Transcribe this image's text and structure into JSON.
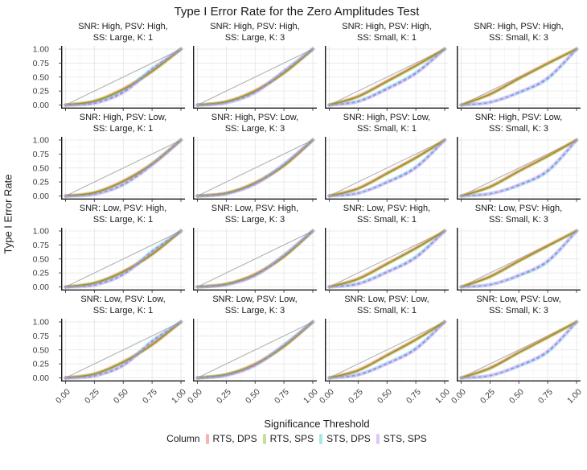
{
  "title": "Type I Error Rate for the Zero Amplitudes Test",
  "y_axis": {
    "label": "Type I Error Rate",
    "ticks": [
      "0.00",
      "0.25",
      "0.50",
      "0.75",
      "1.00"
    ],
    "tick_values": [
      0,
      0.25,
      0.5,
      0.75,
      1
    ]
  },
  "x_axis": {
    "label": "Significance Threshold",
    "ticks": [
      "0.00",
      "0.25",
      "0.50",
      "0.75",
      "1.00"
    ],
    "tick_values": [
      0,
      0.25,
      0.5,
      0.75,
      1
    ]
  },
  "legend": {
    "title": "Column",
    "position": "bottom",
    "entries": [
      {
        "label": "RTS, DPS",
        "key_color": "#f7b3ad"
      },
      {
        "label": "RTS, SPS",
        "key_color": "#c6df97"
      },
      {
        "label": "STS, DPS",
        "key_color": "#a6e8e5"
      },
      {
        "label": "STS, SPS",
        "key_color": "#ddc7f8"
      }
    ]
  },
  "palette": {
    "series": [
      {
        "name": "RTS, DPS",
        "base_color": "#F8766D",
        "line_color": "#ef8f86",
        "halo_color": "rgba(248,118,109,0.28)",
        "dash": "solid"
      },
      {
        "name": "RTS, SPS",
        "base_color": "#7CAE00",
        "line_color": "#9a9428",
        "halo_color": "rgba(124,174,0,0.30)",
        "dash": "solid"
      },
      {
        "name": "STS, DPS",
        "base_color": "#00BFC4",
        "line_color": "#67aedd",
        "halo_color": "rgba(0,191,196,0.22)",
        "dash": "dashed"
      },
      {
        "name": "STS, SPS",
        "base_color": "#C77CFF",
        "line_color": "#b48de2",
        "halo_color": "rgba(199,124,255,0.25)",
        "dash": "dashed"
      }
    ],
    "reference_line_color": "#b3b3b3",
    "major_grid_color": "#e4e4e4",
    "minor_grid_color": "#f2f2f2",
    "axis_line_color": "#1a1a1a"
  },
  "chart_data": {
    "type": "line",
    "title": "Type I Error Rate for the Zero Amplitudes Test",
    "xlabel": "Significance Threshold",
    "ylabel": "Type I Error Rate",
    "xlim": [
      0,
      1
    ],
    "ylim": [
      0,
      1
    ],
    "grid": "major+minor",
    "legend_position": "bottom",
    "reference_line": "y = x (identity diagonal, gray)",
    "facet_layout": "4x4 grid; rows vary SNR/PSV, columns vary SS/K",
    "x": [
      0,
      0.25,
      0.5,
      0.75,
      1
    ],
    "facets": [
      {
        "title_line1": "SNR: High, PSV: High,",
        "title_line2": "SS: Large, K: 1",
        "series": [
          {
            "name": "RTS, DPS",
            "y": [
              0,
              0.07,
              0.29,
              0.61,
              1
            ]
          },
          {
            "name": "RTS, SPS",
            "y": [
              0,
              0.07,
              0.28,
              0.6,
              1
            ]
          },
          {
            "name": "STS, DPS",
            "y": [
              0,
              0.04,
              0.24,
              0.65,
              1
            ]
          },
          {
            "name": "STS, SPS",
            "y": [
              0,
              0.03,
              0.22,
              0.63,
              1
            ]
          }
        ]
      },
      {
        "title_line1": "SNR: High, PSV: High,",
        "title_line2": "SS: Large, K: 3",
        "series": [
          {
            "name": "RTS, DPS",
            "y": [
              0,
              0.06,
              0.26,
              0.58,
              1
            ]
          },
          {
            "name": "RTS, SPS",
            "y": [
              0,
              0.06,
              0.25,
              0.57,
              1
            ]
          },
          {
            "name": "STS, DPS",
            "y": [
              0,
              0.04,
              0.23,
              0.61,
              1
            ]
          },
          {
            "name": "STS, SPS",
            "y": [
              0,
              0.04,
              0.22,
              0.6,
              1
            ]
          }
        ]
      },
      {
        "title_line1": "SNR: High, PSV: High,",
        "title_line2": "SS: Small, K: 1",
        "series": [
          {
            "name": "RTS, DPS",
            "y": [
              0,
              0.16,
              0.43,
              0.71,
              1
            ]
          },
          {
            "name": "RTS, SPS",
            "y": [
              0,
              0.15,
              0.42,
              0.7,
              1
            ]
          },
          {
            "name": "STS, DPS",
            "y": [
              0,
              0.07,
              0.3,
              0.58,
              1
            ]
          },
          {
            "name": "STS, SPS",
            "y": [
              0,
              0.06,
              0.28,
              0.56,
              1
            ]
          }
        ]
      },
      {
        "title_line1": "SNR: High, PSV: High,",
        "title_line2": "SS: Small, K: 3",
        "series": [
          {
            "name": "RTS, DPS",
            "y": [
              0,
              0.2,
              0.48,
              0.75,
              1
            ]
          },
          {
            "name": "RTS, SPS",
            "y": [
              0,
              0.19,
              0.47,
              0.74,
              1
            ]
          },
          {
            "name": "STS, DPS",
            "y": [
              0,
              0.05,
              0.22,
              0.47,
              1
            ]
          },
          {
            "name": "STS, SPS",
            "y": [
              0,
              0.05,
              0.23,
              0.49,
              1
            ]
          }
        ]
      },
      {
        "title_line1": "SNR: High, PSV: Low,",
        "title_line2": "SS: Large, K: 1",
        "series": [
          {
            "name": "RTS, DPS",
            "y": [
              0,
              0.06,
              0.27,
              0.58,
              1
            ]
          },
          {
            "name": "RTS, SPS",
            "y": [
              0,
              0.06,
              0.26,
              0.57,
              1
            ]
          },
          {
            "name": "STS, DPS",
            "y": [
              0,
              0.03,
              0.21,
              0.57,
              1
            ]
          },
          {
            "name": "STS, SPS",
            "y": [
              0,
              0.03,
              0.2,
              0.55,
              1
            ]
          }
        ]
      },
      {
        "title_line1": "SNR: High, PSV: Low,",
        "title_line2": "SS: Large, K: 3",
        "series": [
          {
            "name": "RTS, DPS",
            "y": [
              0,
              0.05,
              0.24,
              0.55,
              1
            ]
          },
          {
            "name": "RTS, SPS",
            "y": [
              0,
              0.05,
              0.23,
              0.54,
              1
            ]
          },
          {
            "name": "STS, DPS",
            "y": [
              0,
              0.04,
              0.22,
              0.57,
              1
            ]
          },
          {
            "name": "STS, SPS",
            "y": [
              0,
              0.04,
              0.21,
              0.56,
              1
            ]
          }
        ]
      },
      {
        "title_line1": "SNR: High, PSV: Low,",
        "title_line2": "SS: Small, K: 1",
        "series": [
          {
            "name": "RTS, DPS",
            "y": [
              0,
              0.14,
              0.41,
              0.69,
              1
            ]
          },
          {
            "name": "RTS, SPS",
            "y": [
              0,
              0.13,
              0.4,
              0.68,
              1
            ]
          },
          {
            "name": "STS, DPS",
            "y": [
              0,
              0.05,
              0.25,
              0.52,
              1
            ]
          },
          {
            "name": "STS, SPS",
            "y": [
              0,
              0.05,
              0.24,
              0.5,
              1
            ]
          }
        ]
      },
      {
        "title_line1": "SNR: High, PSV: Low,",
        "title_line2": "SS: Small, K: 3",
        "series": [
          {
            "name": "RTS, DPS",
            "y": [
              0,
              0.17,
              0.45,
              0.72,
              1
            ]
          },
          {
            "name": "RTS, SPS",
            "y": [
              0,
              0.16,
              0.44,
              0.71,
              1
            ]
          },
          {
            "name": "STS, DPS",
            "y": [
              0,
              0.04,
              0.19,
              0.44,
              1
            ]
          },
          {
            "name": "STS, SPS",
            "y": [
              0,
              0.04,
              0.2,
              0.46,
              1
            ]
          }
        ]
      },
      {
        "title_line1": "SNR: Low, PSV: High,",
        "title_line2": "SS: Large, K: 1",
        "series": [
          {
            "name": "RTS, DPS",
            "y": [
              0,
              0.07,
              0.28,
              0.59,
              1
            ]
          },
          {
            "name": "RTS, SPS",
            "y": [
              0,
              0.07,
              0.27,
              0.58,
              1
            ]
          },
          {
            "name": "STS, DPS",
            "y": [
              0,
              0.04,
              0.23,
              0.64,
              1
            ]
          },
          {
            "name": "STS, SPS",
            "y": [
              0,
              0.03,
              0.22,
              0.62,
              1
            ]
          }
        ]
      },
      {
        "title_line1": "SNR: Low, PSV: High,",
        "title_line2": "SS: Large, K: 3",
        "series": [
          {
            "name": "RTS, DPS",
            "y": [
              0,
              0.05,
              0.23,
              0.55,
              1
            ]
          },
          {
            "name": "RTS, SPS",
            "y": [
              0,
              0.05,
              0.22,
              0.54,
              1
            ]
          },
          {
            "name": "STS, DPS",
            "y": [
              0,
              0.04,
              0.21,
              0.57,
              1
            ]
          },
          {
            "name": "STS, SPS",
            "y": [
              0,
              0.04,
              0.2,
              0.56,
              1
            ]
          }
        ]
      },
      {
        "title_line1": "SNR: Low, PSV: High,",
        "title_line2": "SS: Small, K: 1",
        "series": [
          {
            "name": "RTS, DPS",
            "y": [
              0,
              0.15,
              0.42,
              0.7,
              1
            ]
          },
          {
            "name": "RTS, SPS",
            "y": [
              0,
              0.14,
              0.41,
              0.69,
              1
            ]
          },
          {
            "name": "STS, DPS",
            "y": [
              0,
              0.06,
              0.27,
              0.54,
              1
            ]
          },
          {
            "name": "STS, SPS",
            "y": [
              0,
              0.05,
              0.26,
              0.52,
              1
            ]
          }
        ]
      },
      {
        "title_line1": "SNR: Low, PSV: High,",
        "title_line2": "SS: Small, K: 3",
        "series": [
          {
            "name": "RTS, DPS",
            "y": [
              0,
              0.19,
              0.47,
              0.74,
              1
            ]
          },
          {
            "name": "RTS, SPS",
            "y": [
              0,
              0.18,
              0.46,
              0.73,
              1
            ]
          },
          {
            "name": "STS, DPS",
            "y": [
              0,
              0.04,
              0.2,
              0.45,
              1
            ]
          },
          {
            "name": "STS, SPS",
            "y": [
              0,
              0.04,
              0.21,
              0.47,
              1
            ]
          }
        ]
      },
      {
        "title_line1": "SNR: Low, PSV: Low,",
        "title_line2": "SS: Large, K: 1",
        "series": [
          {
            "name": "RTS, DPS",
            "y": [
              0,
              0.07,
              0.29,
              0.6,
              1
            ]
          },
          {
            "name": "RTS, SPS",
            "y": [
              0,
              0.07,
              0.28,
              0.59,
              1
            ]
          },
          {
            "name": "STS, DPS",
            "y": [
              0,
              0.04,
              0.23,
              0.66,
              1
            ]
          },
          {
            "name": "STS, SPS",
            "y": [
              0,
              0.03,
              0.22,
              0.64,
              1
            ]
          }
        ]
      },
      {
        "title_line1": "SNR: Low, PSV: Low,",
        "title_line2": "SS: Large, K: 3",
        "series": [
          {
            "name": "RTS, DPS",
            "y": [
              0,
              0.06,
              0.25,
              0.57,
              1
            ]
          },
          {
            "name": "RTS, SPS",
            "y": [
              0,
              0.06,
              0.24,
              0.56,
              1
            ]
          },
          {
            "name": "STS, DPS",
            "y": [
              0,
              0.05,
              0.23,
              0.59,
              1
            ]
          },
          {
            "name": "STS, SPS",
            "y": [
              0,
              0.04,
              0.22,
              0.58,
              1
            ]
          }
        ]
      },
      {
        "title_line1": "SNR: Low, PSV: Low,",
        "title_line2": "SS: Small, K: 1",
        "series": [
          {
            "name": "RTS, DPS",
            "y": [
              0,
              0.14,
              0.41,
              0.69,
              1
            ]
          },
          {
            "name": "RTS, SPS",
            "y": [
              0,
              0.13,
              0.4,
              0.68,
              1
            ]
          },
          {
            "name": "STS, DPS",
            "y": [
              0,
              0.06,
              0.26,
              0.53,
              1
            ]
          },
          {
            "name": "STS, SPS",
            "y": [
              0,
              0.05,
              0.25,
              0.51,
              1
            ]
          }
        ]
      },
      {
        "title_line1": "SNR: Low, PSV: Low,",
        "title_line2": "SS: Small, K: 3",
        "series": [
          {
            "name": "RTS, DPS",
            "y": [
              0,
              0.18,
              0.46,
              0.73,
              1
            ]
          },
          {
            "name": "RTS, SPS",
            "y": [
              0,
              0.17,
              0.45,
              0.72,
              1
            ]
          },
          {
            "name": "STS, DPS",
            "y": [
              0,
              0.04,
              0.21,
              0.46,
              1
            ]
          },
          {
            "name": "STS, SPS",
            "y": [
              0,
              0.04,
              0.22,
              0.48,
              1
            ]
          }
        ]
      }
    ]
  }
}
